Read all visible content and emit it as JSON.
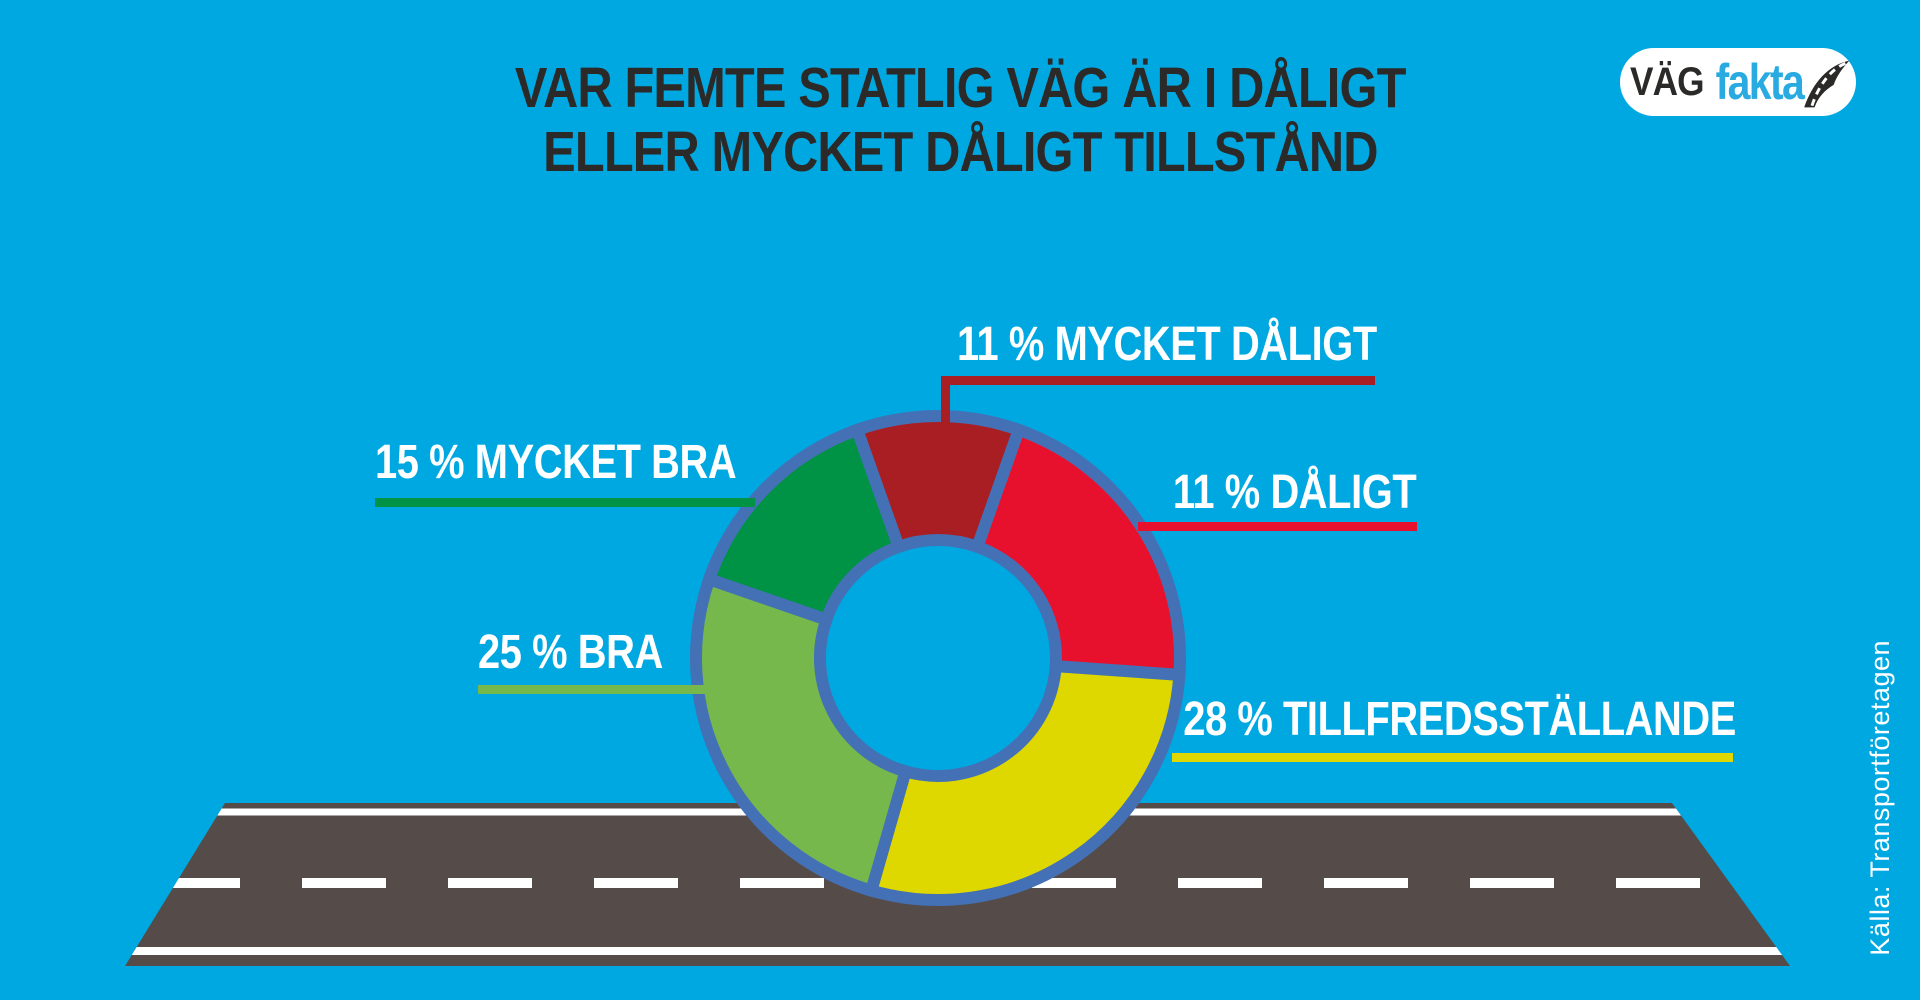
{
  "title": {
    "line1": "VAR FEMTE STATLIG VÄG ÄR I DÅLIGT",
    "line2": "ELLER MYCKET DÅLIGT TILLSTÅND"
  },
  "logo": {
    "text_dark": "VÄG",
    "text_blue": "fakta",
    "icon": "road-swoosh-icon"
  },
  "source": {
    "text": "Källa: Transportföretagen"
  },
  "colors": {
    "background": "#00A8E2",
    "ring_border": "#4471B5",
    "title_text": "#2B2A29",
    "label_text": "#FFFFFF",
    "road_surface": "#554B48",
    "road_marking": "#FFFFFF",
    "logo_pill": "#FFFFFF",
    "logo_dark": "#2B2A29",
    "logo_blue": "#29ABE2"
  },
  "chart_data": {
    "type": "pie",
    "subtype": "donut",
    "title": "VAR FEMTE STATLIG VÄG ÄR I DÅLIGT ELLER MYCKET DÅLIGT TILLSTÅND",
    "legend_position": "callout-labels-around-donut",
    "ring_border_color": "#4471B5",
    "hole_color": "same-as-background",
    "segments": [
      {
        "label": "MYCKET DÅLIGT",
        "value_percent": 11,
        "display_label": "11 % MYCKET DÅLIGT",
        "color": "#A81E22",
        "start_angle": -19.5,
        "end_angle": 19.5
      },
      {
        "label": "DÅLIGT",
        "value_percent": 11,
        "display_label": "11 % DÅLIGT",
        "color": "#E8112D",
        "start_angle": 19.5,
        "end_angle": 94
      },
      {
        "label": "TILLFREDSSTÄLLANDE",
        "value_percent": 28,
        "display_label": "28 % TILLFREDSSTÄLLANDE",
        "color": "#DFD800",
        "start_angle": 94,
        "end_angle": 196
      },
      {
        "label": "BRA",
        "value_percent": 25,
        "display_label": "25 % BRA",
        "color": "#76B84B",
        "start_angle": 196,
        "end_angle": 289
      },
      {
        "label": "MYCKET BRA",
        "value_percent": 15,
        "display_label": "15 % MYCKET BRA",
        "color": "#009245",
        "start_angle": 289,
        "end_angle": 340.5
      }
    ]
  }
}
